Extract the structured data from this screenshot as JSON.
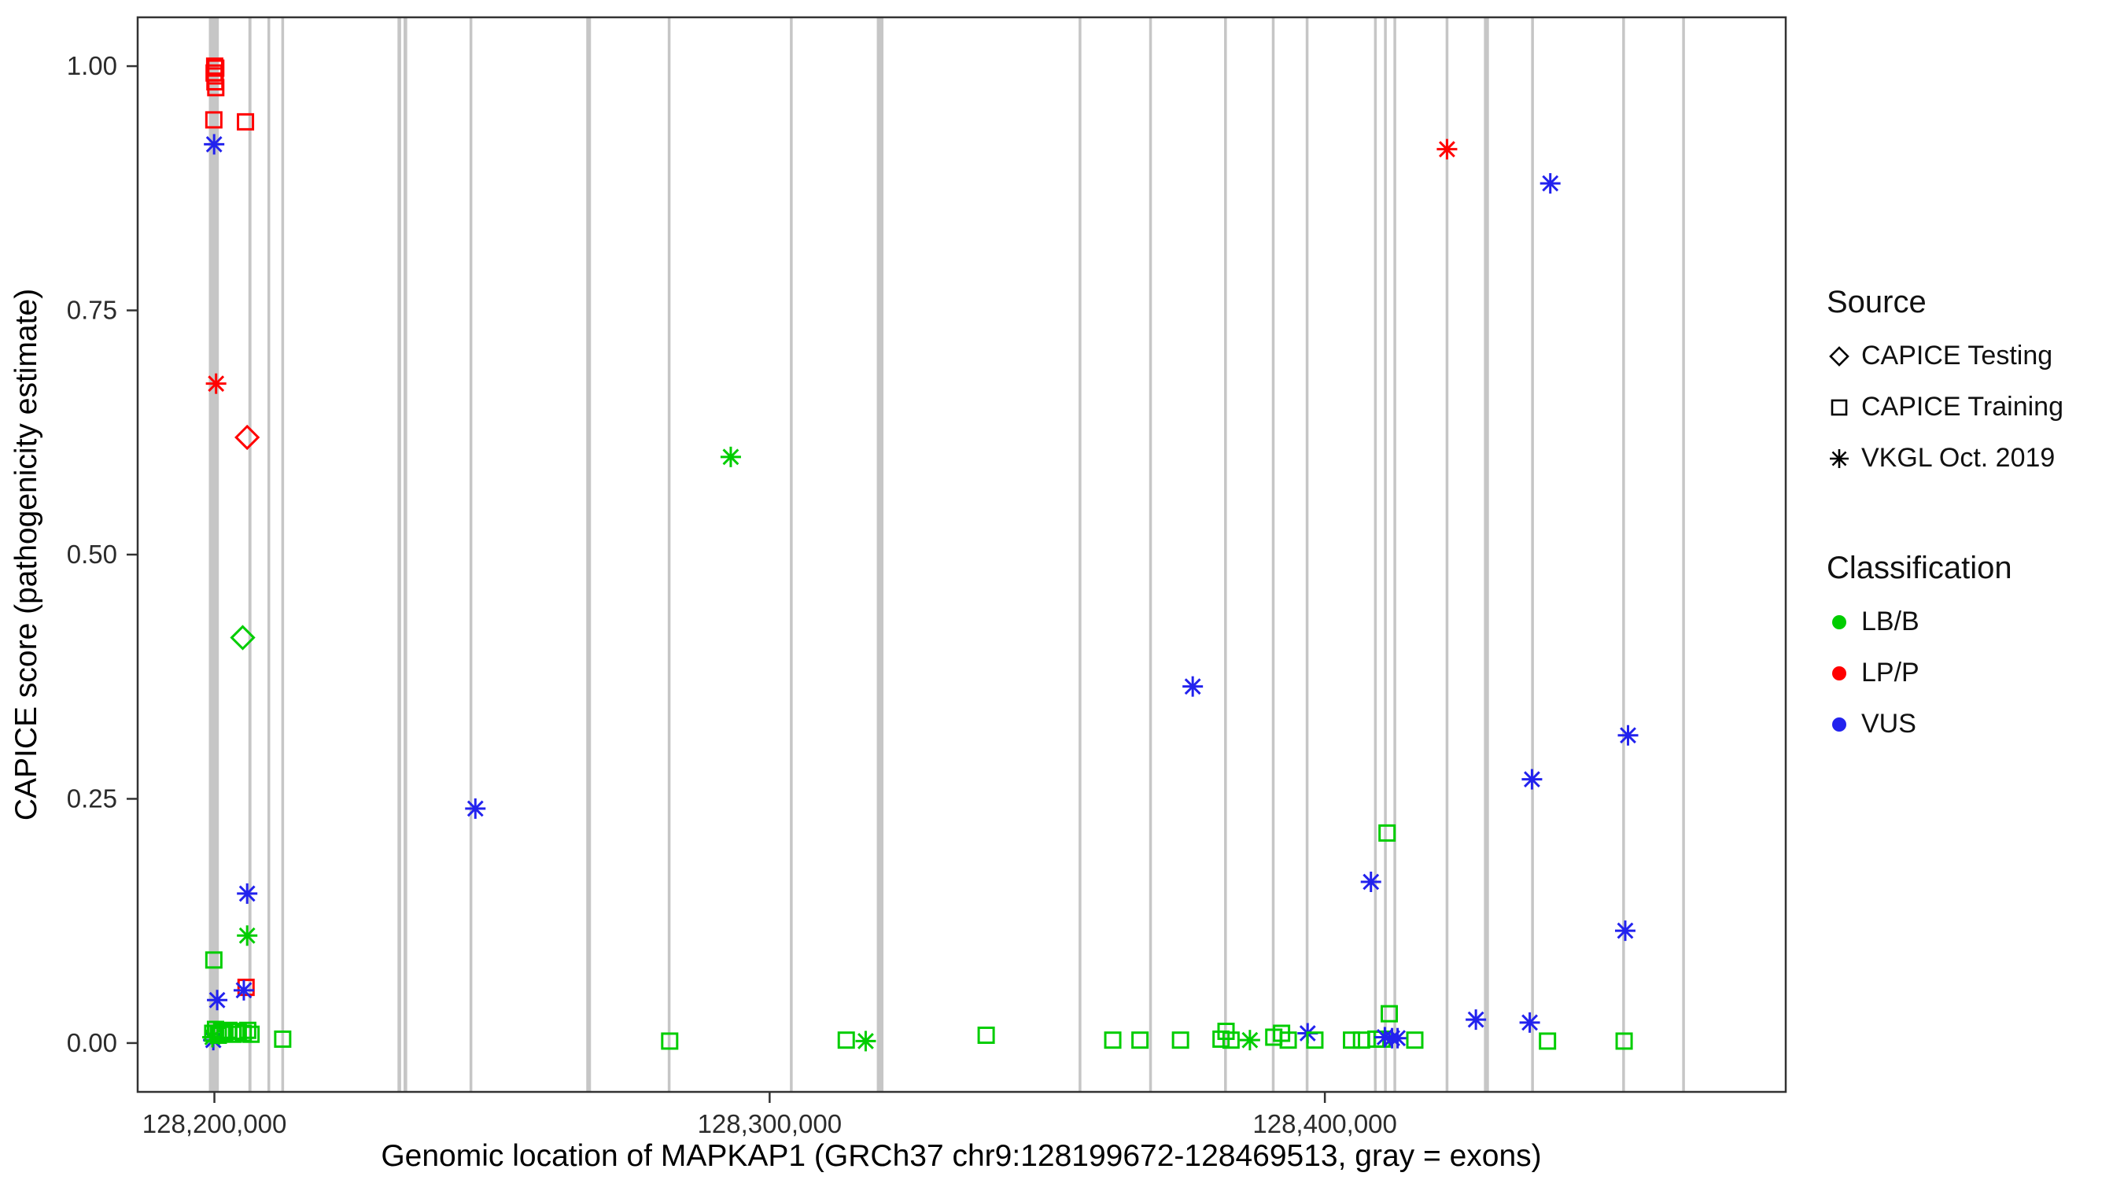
{
  "chart_data": {
    "type": "scatter",
    "title": "",
    "xlabel": "Genomic location of MAPKAP1 (GRCh37 chr9:128199672-128469513, gray = exons)",
    "ylabel": "CAPICE score (pathogenicity estimate)",
    "xlim": [
      128186180,
      128483005
    ],
    "ylim": [
      -0.05,
      1.05
    ],
    "grid": "off",
    "x_ticks": [
      {
        "value": 128200000,
        "label": "128,200,000"
      },
      {
        "value": 128300000,
        "label": "128,300,000"
      },
      {
        "value": 128400000,
        "label": "128,400,000"
      }
    ],
    "y_ticks": [
      {
        "value": 0.0,
        "label": "0.00"
      },
      {
        "value": 0.25,
        "label": "0.25"
      },
      {
        "value": 0.5,
        "label": "0.50"
      },
      {
        "value": 0.75,
        "label": "0.75"
      },
      {
        "value": 1.0,
        "label": "1.00"
      }
    ],
    "exon_color": "#c6c6c6",
    "exons": [
      [
        128199900,
        1800
      ],
      [
        128206400,
        550
      ],
      [
        128209800,
        500
      ],
      [
        128212300,
        500
      ],
      [
        128233300,
        650
      ],
      [
        128234400,
        650
      ],
      [
        128246200,
        500
      ],
      [
        128267400,
        850
      ],
      [
        128281900,
        500
      ],
      [
        128303900,
        500
      ],
      [
        128319900,
        1200
      ],
      [
        128355900,
        500
      ],
      [
        128368600,
        500
      ],
      [
        128382100,
        500
      ],
      [
        128390700,
        500
      ],
      [
        128396800,
        500
      ],
      [
        128409100,
        500
      ],
      [
        128410900,
        500
      ],
      [
        128412600,
        500
      ],
      [
        128422000,
        500
      ],
      [
        128429100,
        900
      ],
      [
        128437400,
        500
      ],
      [
        128453800,
        500
      ],
      [
        128464600,
        500
      ]
    ],
    "shape_of": {
      "testing": "diamond",
      "training": "square",
      "vkgl": "asterisk"
    },
    "colors": {
      "LB/B": "#00cd00",
      "LP/P": "#ff0000",
      "VUS": "#2222ee"
    },
    "points": [
      [
        128200050,
        1.0,
        "training",
        "LP/P"
      ],
      [
        128200250,
        0.998,
        "training",
        "LP/P"
      ],
      [
        128199950,
        0.993,
        "training",
        "LP/P"
      ],
      [
        128200150,
        0.99,
        "training",
        "LP/P"
      ],
      [
        128200100,
        0.984,
        "training",
        "LP/P"
      ],
      [
        128200250,
        0.978,
        "training",
        "LP/P"
      ],
      [
        128199900,
        0.945,
        "training",
        "LP/P"
      ],
      [
        128205600,
        0.943,
        "training",
        "LP/P"
      ],
      [
        128199950,
        0.92,
        "vkgl",
        "VUS"
      ],
      [
        128200300,
        0.675,
        "vkgl",
        "LP/P"
      ],
      [
        128205900,
        0.62,
        "testing",
        "LP/P"
      ],
      [
        128205100,
        0.415,
        "testing",
        "LB/B"
      ],
      [
        128205900,
        0.153,
        "vkgl",
        "VUS"
      ],
      [
        128205900,
        0.11,
        "vkgl",
        "LB/B"
      ],
      [
        128199900,
        0.085,
        "training",
        "LB/B"
      ],
      [
        128205700,
        0.057,
        "training",
        "LP/P"
      ],
      [
        128205300,
        0.054,
        "vkgl",
        "VUS"
      ],
      [
        128200500,
        0.044,
        "vkgl",
        "VUS"
      ],
      [
        128199800,
        0.003,
        "vkgl",
        "VUS"
      ],
      [
        128199650,
        0.006,
        "vkgl",
        "LB/B"
      ],
      [
        128199700,
        0.01,
        "training",
        "LB/B"
      ],
      [
        128200200,
        0.014,
        "training",
        "LB/B"
      ],
      [
        128200700,
        0.008,
        "training",
        "LB/B"
      ],
      [
        128201300,
        0.012,
        "training",
        "LB/B"
      ],
      [
        128201900,
        0.01,
        "training",
        "LB/B"
      ],
      [
        128202600,
        0.013,
        "training",
        "LB/B"
      ],
      [
        128203400,
        0.009,
        "training",
        "LB/B"
      ],
      [
        128204300,
        0.012,
        "training",
        "LB/B"
      ],
      [
        128205200,
        0.01,
        "training",
        "LB/B"
      ],
      [
        128206000,
        0.013,
        "training",
        "LB/B"
      ],
      [
        128206600,
        0.009,
        "training",
        "LB/B"
      ],
      [
        128212300,
        0.004,
        "training",
        "LB/B"
      ],
      [
        128247000,
        0.24,
        "vkgl",
        "VUS"
      ],
      [
        128282000,
        0.002,
        "training",
        "LB/B"
      ],
      [
        128293000,
        0.6,
        "vkgl",
        "LB/B"
      ],
      [
        128313800,
        0.003,
        "training",
        "LB/B"
      ],
      [
        128317300,
        0.002,
        "vkgl",
        "LB/B"
      ],
      [
        128339000,
        0.008,
        "training",
        "LB/B"
      ],
      [
        128361800,
        0.003,
        "training",
        "LB/B"
      ],
      [
        128366700,
        0.003,
        "training",
        "LB/B"
      ],
      [
        128374000,
        0.003,
        "training",
        "LB/B"
      ],
      [
        128376200,
        0.365,
        "vkgl",
        "VUS"
      ],
      [
        128381300,
        0.004,
        "training",
        "LB/B"
      ],
      [
        128382200,
        0.012,
        "training",
        "LB/B"
      ],
      [
        128383100,
        0.003,
        "training",
        "LB/B"
      ],
      [
        128386500,
        0.003,
        "vkgl",
        "LB/B"
      ],
      [
        128390800,
        0.006,
        "training",
        "LB/B"
      ],
      [
        128392200,
        0.01,
        "training",
        "LB/B"
      ],
      [
        128393400,
        0.003,
        "training",
        "LB/B"
      ],
      [
        128396900,
        0.01,
        "vkgl",
        "VUS"
      ],
      [
        128398200,
        0.003,
        "training",
        "LB/B"
      ],
      [
        128404800,
        0.003,
        "training",
        "LB/B"
      ],
      [
        128406600,
        0.003,
        "training",
        "LB/B"
      ],
      [
        128408300,
        0.165,
        "vkgl",
        "VUS"
      ],
      [
        128409200,
        0.004,
        "training",
        "LB/B"
      ],
      [
        128410300,
        0.004,
        "training",
        "LB/B"
      ],
      [
        128411200,
        0.215,
        "training",
        "LB/B"
      ],
      [
        128411600,
        0.03,
        "training",
        "LB/B"
      ],
      [
        128410800,
        0.006,
        "vkgl",
        "VUS"
      ],
      [
        128412100,
        0.005,
        "vkgl",
        "VUS"
      ],
      [
        128413100,
        0.005,
        "vkgl",
        "VUS"
      ],
      [
        128416200,
        0.003,
        "training",
        "LB/B"
      ],
      [
        128422000,
        0.915,
        "vkgl",
        "LP/P"
      ],
      [
        128427200,
        0.024,
        "vkgl",
        "VUS"
      ],
      [
        128437300,
        0.27,
        "vkgl",
        "VUS"
      ],
      [
        128436900,
        0.021,
        "vkgl",
        "VUS"
      ],
      [
        128440600,
        0.88,
        "vkgl",
        "VUS"
      ],
      [
        128440100,
        0.002,
        "training",
        "LB/B"
      ],
      [
        128454600,
        0.315,
        "vkgl",
        "VUS"
      ],
      [
        128454100,
        0.115,
        "vkgl",
        "VUS"
      ],
      [
        128453900,
        0.002,
        "training",
        "LB/B"
      ]
    ]
  },
  "legend": {
    "source": {
      "title": "Source",
      "items": [
        {
          "label": "CAPICE Testing",
          "shape": "diamond"
        },
        {
          "label": "CAPICE Training",
          "shape": "square"
        },
        {
          "label": "VKGL Oct. 2019",
          "shape": "asterisk"
        }
      ]
    },
    "classification": {
      "title": "Classification",
      "items": [
        {
          "label": "LB/B",
          "color": "#00cd00"
        },
        {
          "label": "LP/P",
          "color": "#ff0000"
        },
        {
          "label": "VUS",
          "color": "#2222ee"
        }
      ]
    }
  }
}
